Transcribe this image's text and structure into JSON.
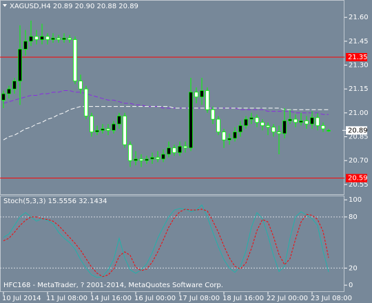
{
  "chart_data": [
    {
      "type": "candlestick",
      "title": "XAGUSD,H4  20.89 20.90 20.88 20.89",
      "footer": "HFC168 - MetaTrader, ? 2001-2014, MetaQuotes Software Corp.",
      "categories": [
        "10 Jul 2014",
        null,
        null,
        null,
        null,
        null,
        null,
        null,
        "11 Jul 08:00",
        null,
        null,
        null,
        null,
        null,
        null,
        null,
        "14 Jul 16:00",
        null,
        null,
        null,
        null,
        null,
        null,
        null,
        "16 Jul 00:00",
        null,
        null,
        null,
        null,
        null,
        null,
        null,
        "17 Jul 08:00",
        null,
        null,
        null,
        null,
        null,
        null,
        null,
        "18 Jul 16:00",
        null,
        null,
        null,
        null,
        null,
        null,
        null,
        "22 Jul 00:00",
        null,
        null,
        null,
        null,
        null,
        null,
        null,
        "23 Jul 08:00",
        null,
        null,
        null
      ],
      "open": [
        21.08,
        21.12,
        21.15,
        21.2,
        21.4,
        21.45,
        21.48,
        21.46,
        21.48,
        21.46,
        21.47,
        21.46,
        21.47,
        21.46,
        21.2,
        21.15,
        20.98,
        20.88,
        20.89,
        20.9,
        20.89,
        20.93,
        20.98,
        20.8,
        20.7,
        20.71,
        20.7,
        20.71,
        20.72,
        20.71,
        20.74,
        20.78,
        20.75,
        20.79,
        20.78,
        21.13,
        21.1,
        21.14,
        21.02,
        20.96,
        20.88,
        20.83,
        20.84,
        20.88,
        20.92,
        20.96,
        20.97,
        20.94,
        20.92,
        20.91,
        20.88,
        20.87,
        20.95,
        20.96,
        20.94,
        20.95,
        20.93,
        20.97,
        20.92,
        20.89
      ],
      "high": [
        21.14,
        21.17,
        21.22,
        21.55,
        21.52,
        21.58,
        21.52,
        21.56,
        21.5,
        21.5,
        21.49,
        21.5,
        21.49,
        21.48,
        21.24,
        21.17,
        21.0,
        20.92,
        20.93,
        20.93,
        20.95,
        21.0,
        21.0,
        20.82,
        20.76,
        20.74,
        20.73,
        20.75,
        20.76,
        20.77,
        20.82,
        20.8,
        20.82,
        20.82,
        21.22,
        21.16,
        21.22,
        21.16,
        21.04,
        20.98,
        20.9,
        20.87,
        20.91,
        20.95,
        20.98,
        21.0,
        20.99,
        20.96,
        20.94,
        20.93,
        20.92,
        21.03,
        21.02,
        20.99,
        21.0,
        20.98,
        21.01,
        21.0,
        20.94,
        20.9
      ],
      "low": [
        21.03,
        21.09,
        21.12,
        21.05,
        21.36,
        21.42,
        21.43,
        21.43,
        21.43,
        21.44,
        21.44,
        21.44,
        21.44,
        21.18,
        21.12,
        20.96,
        20.85,
        20.86,
        20.87,
        20.86,
        20.87,
        20.9,
        20.78,
        20.66,
        20.67,
        20.66,
        20.68,
        20.68,
        20.69,
        20.69,
        20.72,
        20.73,
        20.73,
        20.75,
        20.76,
        21.06,
        21.05,
        21.0,
        20.93,
        20.86,
        20.78,
        20.8,
        20.82,
        20.85,
        20.9,
        20.93,
        20.91,
        20.89,
        20.86,
        20.85,
        20.74,
        20.84,
        20.93,
        20.91,
        20.92,
        20.9,
        20.9,
        20.89,
        20.88,
        20.88
      ],
      "close": [
        21.12,
        21.15,
        21.2,
        21.4,
        21.45,
        21.48,
        21.46,
        21.48,
        21.46,
        21.47,
        21.46,
        21.47,
        21.46,
        21.2,
        21.15,
        20.98,
        20.88,
        20.89,
        20.9,
        20.89,
        20.93,
        20.98,
        20.8,
        20.7,
        20.71,
        20.7,
        20.71,
        20.72,
        20.71,
        20.74,
        20.78,
        20.75,
        20.79,
        20.78,
        21.13,
        21.1,
        21.14,
        21.02,
        20.96,
        20.88,
        20.83,
        20.84,
        20.88,
        20.92,
        20.96,
        20.97,
        20.94,
        20.92,
        20.91,
        20.88,
        20.87,
        20.95,
        20.96,
        20.94,
        20.95,
        20.93,
        20.97,
        20.92,
        20.9,
        20.89
      ],
      "colors": {
        "wick": "#00ff00",
        "bull": "#000000",
        "bear": "#ffffff"
      },
      "series": [
        {
          "color": "#8a2be2",
          "values": [
            21.06,
            21.07,
            21.08,
            21.09,
            21.1,
            21.11,
            21.11,
            21.12,
            21.12,
            21.13,
            21.13,
            21.14,
            21.14,
            21.13,
            21.13,
            21.12,
            21.11,
            21.1,
            21.09,
            21.08,
            21.08,
            21.07,
            21.06,
            21.06,
            21.05,
            21.05,
            21.04,
            21.04,
            21.04,
            21.03,
            21.03,
            21.03,
            21.03,
            21.03,
            21.03,
            21.03,
            21.03,
            21.03,
            21.03,
            21.03,
            21.03,
            21.03,
            21.03,
            21.02,
            21.02,
            21.02,
            21.02,
            21.02,
            21.01,
            21.01,
            21.01,
            21.01,
            21.01,
            21.0,
            21.0,
            21.0,
            21.0,
            21.0,
            20.99,
            20.99
          ]
        },
        {
          "color": "#ffffff",
          "values": [
            20.83,
            20.85,
            20.86,
            20.88,
            20.9,
            20.91,
            20.93,
            20.94,
            20.96,
            20.97,
            20.99,
            21.0,
            21.02,
            21.03,
            21.04,
            21.04,
            21.04,
            21.04,
            21.04,
            21.04,
            21.04,
            21.04,
            21.04,
            21.04,
            21.04,
            21.04,
            21.04,
            21.04,
            21.04,
            21.04,
            21.04,
            21.03,
            21.03,
            21.03,
            21.03,
            21.03,
            21.03,
            21.03,
            21.03,
            21.03,
            21.03,
            21.03,
            21.03,
            21.03,
            21.03,
            21.03,
            21.03,
            21.03,
            21.03,
            21.03,
            21.03,
            21.02,
            21.02,
            21.02,
            21.02,
            21.02,
            21.02,
            21.02,
            21.02,
            21.02
          ]
        }
      ],
      "levels": [
        {
          "value": 21.35,
          "label": "21.35"
        },
        {
          "value": 20.59,
          "label": "20.59"
        }
      ],
      "level_color": "#ff0000",
      "last_price": {
        "value": 20.89,
        "label": "20.89"
      },
      "ylim": [
        20.489,
        21.709
      ],
      "yticks": [
        {
          "value": 21.6,
          "label": "21.60"
        },
        {
          "value": 21.45,
          "label": "21.45"
        },
        {
          "value": 21.3,
          "label": "21.30"
        },
        {
          "value": 21.15,
          "label": "21.15"
        },
        {
          "value": 21.0,
          "label": "21.00"
        },
        {
          "value": 20.85,
          "label": "20.85"
        },
        {
          "value": 20.7,
          "label": "20.70"
        },
        {
          "value": 20.55,
          "label": "20.55"
        }
      ]
    },
    {
      "type": "line",
      "title": "Stoch(5,3,3) 15.5556 32.1434",
      "series": [
        {
          "color": "#20b2aa",
          "values": [
            56,
            60,
            70,
            80,
            85,
            80,
            75,
            78,
            76,
            72,
            62,
            55,
            50,
            42,
            30,
            20,
            12,
            9,
            10,
            18,
            30,
            55,
            32,
            18,
            14,
            18,
            25,
            38,
            55,
            68,
            80,
            88,
            90,
            89,
            86,
            88,
            94,
            80,
            62,
            45,
            30,
            20,
            15,
            22,
            40,
            68,
            85,
            78,
            58,
            35,
            16,
            22,
            55,
            80,
            86,
            82,
            78,
            70,
            40,
            15.5556
          ]
        },
        {
          "color": "#ff0000",
          "values": [
            52,
            55,
            62,
            70,
            76,
            80,
            80,
            78,
            77,
            75,
            70,
            63,
            56,
            49,
            41,
            31,
            21,
            14,
            10,
            12,
            19,
            34,
            39,
            35,
            21,
            17,
            19,
            27,
            39,
            53,
            68,
            79,
            86,
            89,
            88,
            88,
            89,
            87,
            75,
            62,
            46,
            32,
            22,
            19,
            26,
            43,
            64,
            77,
            74,
            57,
            36,
            24,
            31,
            54,
            74,
            83,
            82,
            77,
            63,
            32.1434
          ]
        }
      ],
      "levels": [
        80,
        20
      ],
      "ylim": [
        -8,
        105
      ],
      "yticks": [
        100,
        80,
        20,
        0
      ]
    }
  ]
}
